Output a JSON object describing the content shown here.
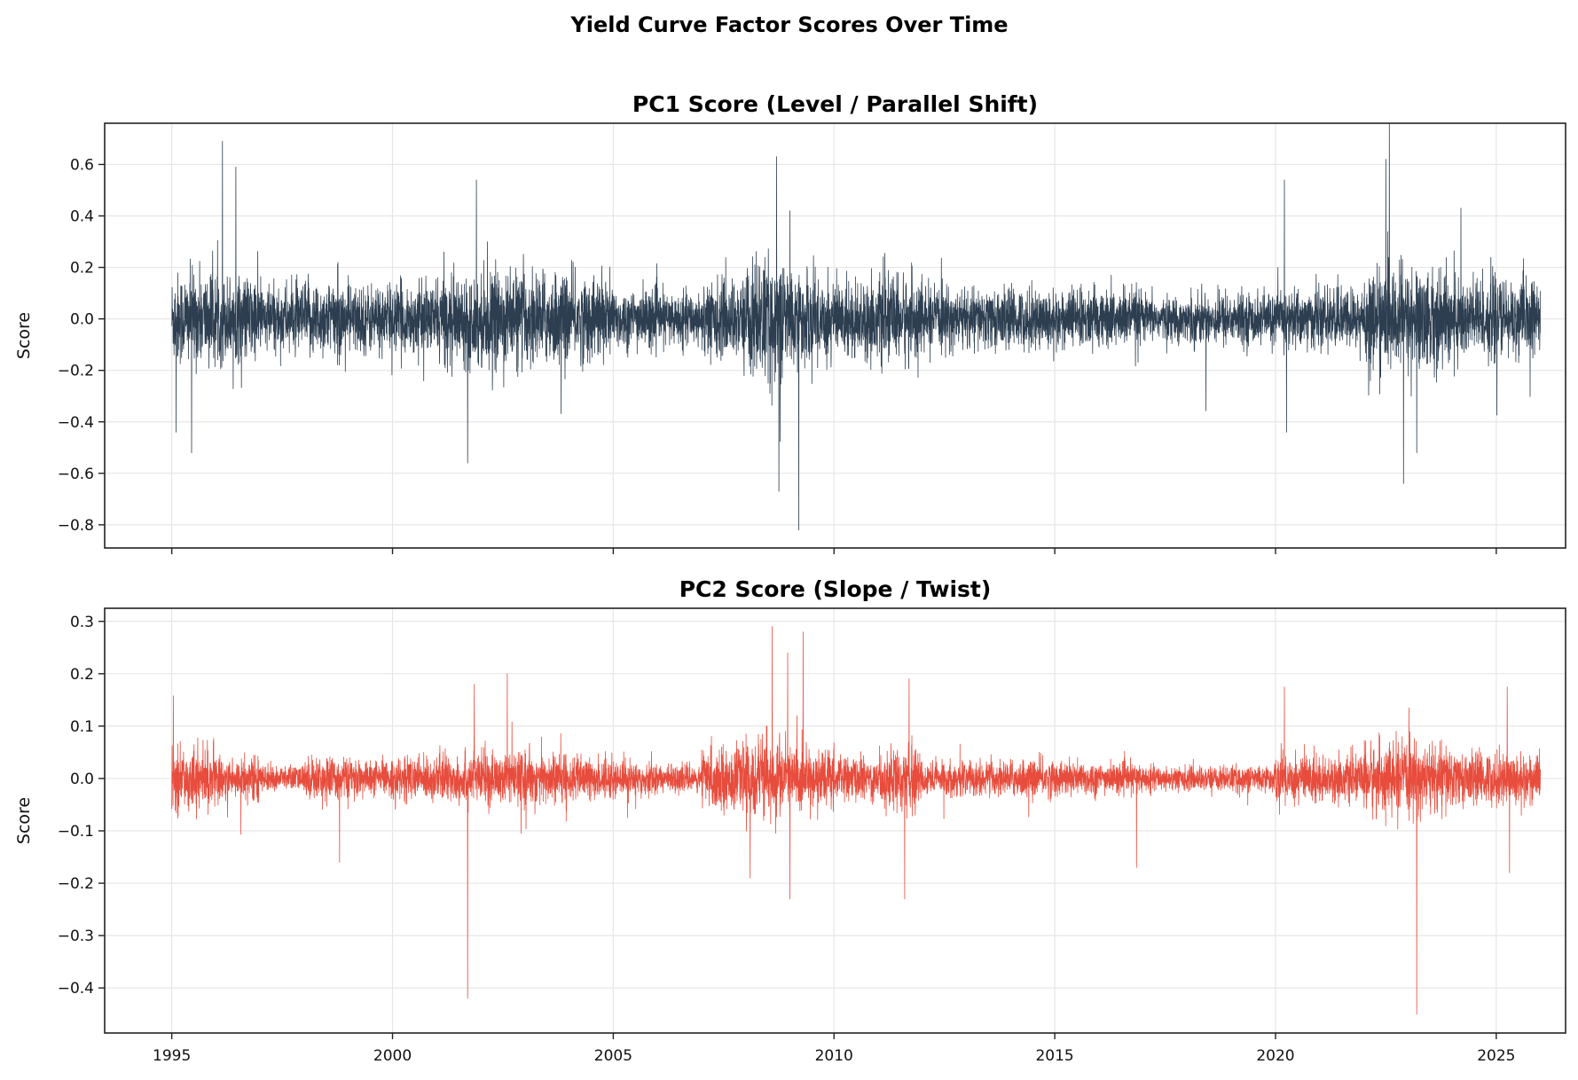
{
  "chart_data": {
    "type": "line",
    "title": "Yield Curve Factor Scores Over Time",
    "x_range": [
      1995.0,
      2026.0
    ],
    "xlim": [
      1993.48,
      2026.57
    ],
    "xticks": [
      1995,
      2000,
      2005,
      2010,
      2015,
      2020,
      2025
    ],
    "panels": [
      {
        "title": "PC1 Score (Level / Parallel Shift)",
        "ylabel": "Score",
        "color": "#2c3e50",
        "ylim": [
          -0.89,
          0.76
        ],
        "yticks": [
          -0.8,
          -0.6,
          -0.4,
          -0.2,
          0.0,
          0.2,
          0.4,
          0.6
        ],
        "ytick_labels": [
          "−0.8",
          "−0.6",
          "−0.4",
          "−0.2",
          "0.0",
          "0.2",
          "0.4",
          "0.6"
        ],
        "volatility_by_year": [
          [
            1995,
            0.11
          ],
          [
            1996,
            0.1
          ],
          [
            1997,
            0.08
          ],
          [
            1998,
            0.09
          ],
          [
            1999,
            0.08
          ],
          [
            2000,
            0.08
          ],
          [
            2001,
            0.1
          ],
          [
            2002,
            0.11
          ],
          [
            2003,
            0.11
          ],
          [
            2004,
            0.1
          ],
          [
            2005,
            0.07
          ],
          [
            2006,
            0.06
          ],
          [
            2007,
            0.09
          ],
          [
            2008,
            0.14
          ],
          [
            2009,
            0.11
          ],
          [
            2010,
            0.09
          ],
          [
            2011,
            0.1
          ],
          [
            2012,
            0.07
          ],
          [
            2013,
            0.07
          ],
          [
            2014,
            0.07
          ],
          [
            2015,
            0.07
          ],
          [
            2016,
            0.07
          ],
          [
            2017,
            0.05
          ],
          [
            2018,
            0.06
          ],
          [
            2019,
            0.06
          ],
          [
            2020,
            0.07
          ],
          [
            2021,
            0.07
          ],
          [
            2022,
            0.12
          ],
          [
            2023,
            0.12
          ],
          [
            2024,
            0.1
          ],
          [
            2025,
            0.09
          ],
          [
            2026,
            0.08
          ]
        ],
        "spikes": [
          [
            1995.45,
            -0.52
          ],
          [
            1995.1,
            -0.44
          ],
          [
            1996.15,
            0.69
          ],
          [
            1996.45,
            0.59
          ],
          [
            2001.7,
            -0.56
          ],
          [
            2001.9,
            0.54
          ],
          [
            2008.7,
            0.63
          ],
          [
            2008.75,
            -0.67
          ],
          [
            2009.2,
            -0.82
          ],
          [
            2009.0,
            0.42
          ],
          [
            2020.2,
            0.54
          ],
          [
            2020.25,
            -0.44
          ],
          [
            2022.5,
            0.62
          ],
          [
            2022.9,
            -0.64
          ],
          [
            2023.2,
            -0.52
          ],
          [
            2024.2,
            0.43
          ]
        ]
      },
      {
        "title": "PC2 Score (Slope / Twist)",
        "ylabel": "Score",
        "color": "#e74c3c",
        "ylim": [
          -0.486,
          0.325
        ],
        "yticks": [
          -0.4,
          -0.3,
          -0.2,
          -0.1,
          0.0,
          0.1,
          0.2,
          0.3
        ],
        "ytick_labels": [
          "−0.4",
          "−0.3",
          "−0.2",
          "−0.1",
          "0.0",
          "0.1",
          "0.2",
          "0.3"
        ],
        "volatility_by_year": [
          [
            1995,
            0.035
          ],
          [
            1996,
            0.025
          ],
          [
            1997,
            0.015
          ],
          [
            1998,
            0.025
          ],
          [
            1999,
            0.02
          ],
          [
            2000,
            0.025
          ],
          [
            2001,
            0.03
          ],
          [
            2002,
            0.03
          ],
          [
            2003,
            0.03
          ],
          [
            2004,
            0.025
          ],
          [
            2005,
            0.02
          ],
          [
            2006,
            0.015
          ],
          [
            2007,
            0.035
          ],
          [
            2008,
            0.045
          ],
          [
            2009,
            0.035
          ],
          [
            2010,
            0.025
          ],
          [
            2011,
            0.035
          ],
          [
            2012,
            0.02
          ],
          [
            2013,
            0.02
          ],
          [
            2014,
            0.022
          ],
          [
            2015,
            0.02
          ],
          [
            2016,
            0.017
          ],
          [
            2017,
            0.014
          ],
          [
            2018,
            0.014
          ],
          [
            2019,
            0.015
          ],
          [
            2020,
            0.03
          ],
          [
            2021,
            0.025
          ],
          [
            2022,
            0.04
          ],
          [
            2023,
            0.04
          ],
          [
            2024,
            0.03
          ],
          [
            2025,
            0.03
          ],
          [
            2026,
            0.025
          ]
        ],
        "spikes": [
          [
            2001.7,
            -0.42
          ],
          [
            2001.85,
            0.18
          ],
          [
            2002.6,
            0.2
          ],
          [
            2008.6,
            0.29
          ],
          [
            2009.3,
            0.28
          ],
          [
            2008.95,
            0.24
          ],
          [
            2009.0,
            -0.23
          ],
          [
            2008.1,
            -0.19
          ],
          [
            2011.6,
            -0.23
          ],
          [
            2011.7,
            0.19
          ],
          [
            2016.85,
            -0.17
          ],
          [
            2020.2,
            0.175
          ],
          [
            2023.2,
            -0.45
          ],
          [
            2025.25,
            0.175
          ],
          [
            2025.3,
            -0.18
          ],
          [
            1998.8,
            -0.16
          ]
        ]
      }
    ]
  }
}
